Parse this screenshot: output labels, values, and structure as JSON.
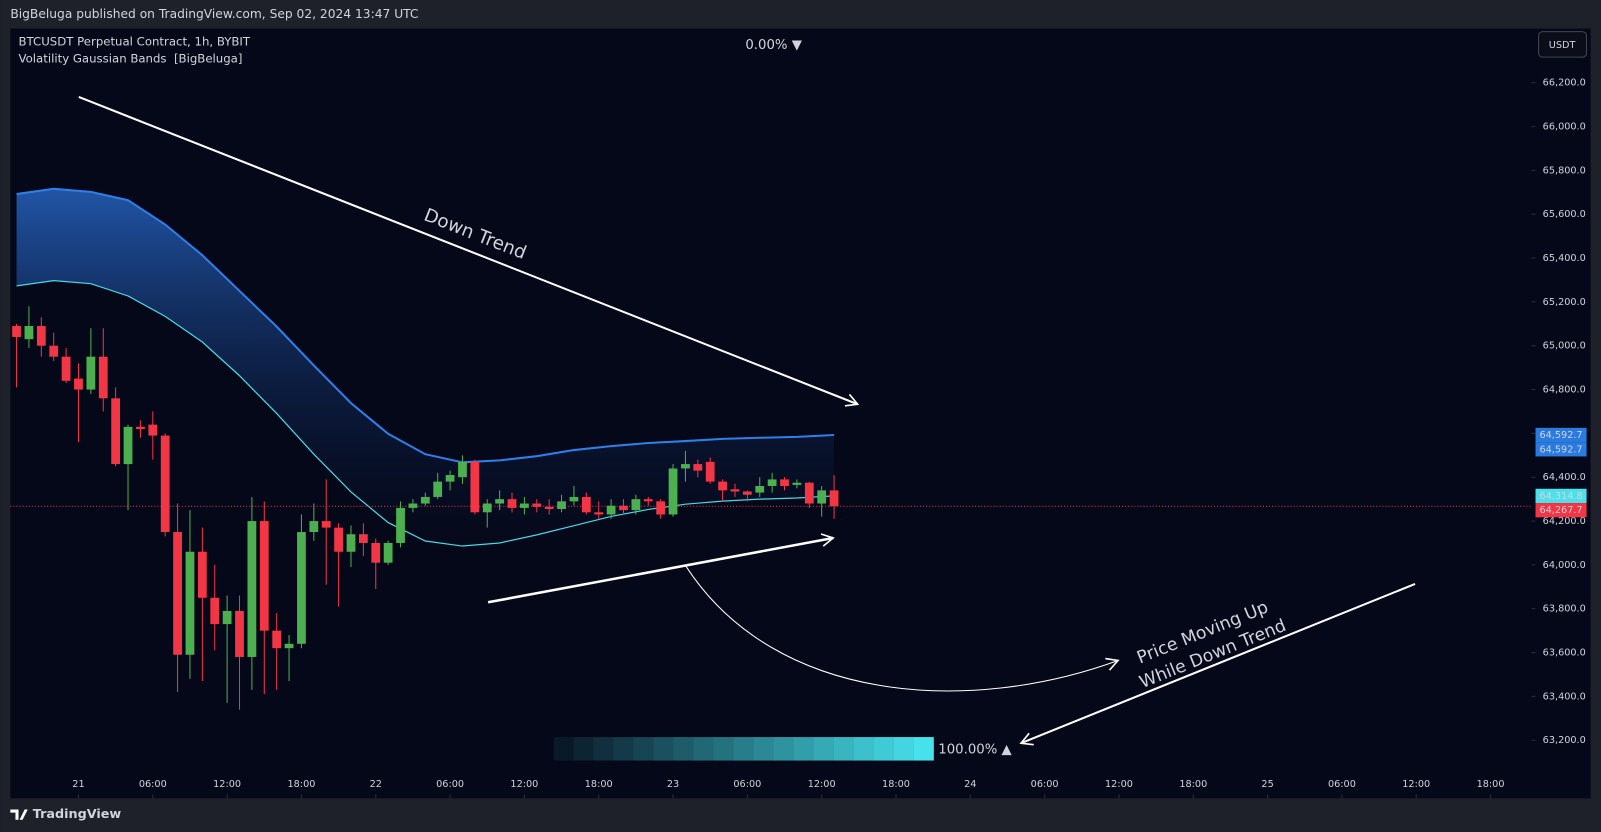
{
  "header": {
    "published": "BigBeluga published on TradingView.com, Sep 02, 2024 13:47 UTC",
    "symbol": "BTCUSDT Perpetual Contract, 1h, BYBIT",
    "indicator": "Volatility Gaussian Bands  [BigBeluga]",
    "currency": "USDT",
    "brand": "TradingView"
  },
  "chart_data": {
    "type": "candlestick",
    "x": [
      -5,
      -4,
      -3,
      -2,
      -1,
      0,
      1,
      2,
      3,
      4,
      5,
      6,
      7,
      8,
      9,
      10,
      11,
      12,
      13,
      14,
      15,
      16,
      17,
      18,
      19,
      20,
      21,
      22,
      23,
      24,
      25,
      26,
      27,
      28,
      29,
      30,
      31,
      32,
      33,
      34,
      35,
      36,
      37,
      38,
      39,
      40,
      41,
      42,
      43,
      44,
      45,
      46,
      47,
      48,
      49,
      50,
      51,
      52,
      53,
      54,
      55,
      56,
      57,
      58,
      59,
      60,
      61
    ],
    "open": [
      65090,
      65030,
      65090,
      65000,
      64950,
      64850,
      64800,
      64950,
      64760,
      64460,
      64630,
      64640,
      64590,
      64150,
      63590,
      64060,
      63850,
      63730,
      63790,
      63580,
      64200,
      63700,
      63620,
      63640,
      64150,
      64200,
      64170,
      64060,
      64140,
      64100,
      64010,
      64100,
      64260,
      64280,
      64310,
      64380,
      64400,
      64470,
      64240,
      64280,
      64300,
      64260,
      64280,
      64265,
      64255,
      64290,
      64310,
      64240,
      64230,
      64270,
      64250,
      64300,
      64290,
      64230,
      64440,
      64460,
      64470,
      64380,
      64345,
      64335,
      64330,
      64360,
      64390,
      64365,
      64375,
      64280,
      64340
    ],
    "high": [
      65100,
      65180,
      65130,
      65060,
      64990,
      64920,
      65080,
      65080,
      64810,
      64640,
      64660,
      64700,
      64600,
      64280,
      64250,
      64170,
      64000,
      63860,
      63860,
      64310,
      64290,
      63780,
      63680,
      64230,
      64280,
      64390,
      64190,
      64180,
      64190,
      64120,
      64110,
      64290,
      64300,
      64330,
      64420,
      64430,
      64500,
      64480,
      64300,
      64340,
      64330,
      64310,
      64300,
      64300,
      64320,
      64360,
      64330,
      64290,
      64300,
      64300,
      64320,
      64310,
      64300,
      64460,
      64520,
      64480,
      64490,
      64390,
      64370,
      64340,
      64400,
      64420,
      64400,
      64390,
      64380,
      64360,
      64410
    ],
    "low": [
      64810,
      64990,
      64950,
      64930,
      64830,
      64560,
      64780,
      64700,
      64450,
      64250,
      64580,
      64480,
      64130,
      63420,
      63480,
      63470,
      63610,
      63370,
      63340,
      63430,
      63410,
      63430,
      63470,
      63620,
      64110,
      63910,
      63810,
      63990,
      64040,
      63890,
      64000,
      64080,
      64240,
      64270,
      64300,
      64340,
      64370,
      64230,
      64170,
      64250,
      64240,
      64230,
      64240,
      64230,
      64240,
      64270,
      64230,
      64210,
      64210,
      64230,
      64230,
      64270,
      64210,
      64220,
      64380,
      64400,
      64370,
      64290,
      64310,
      64290,
      64310,
      64330,
      64340,
      64350,
      64260,
      64220,
      64210
    ],
    "close": [
      65040,
      65090,
      65000,
      64950,
      64840,
      64800,
      64950,
      64760,
      64460,
      64630,
      64620,
      64590,
      64150,
      63590,
      64060,
      63850,
      63730,
      63790,
      63580,
      64200,
      63700,
      63620,
      63640,
      64150,
      64200,
      64170,
      64060,
      64140,
      64100,
      64010,
      64100,
      64260,
      64280,
      64310,
      64380,
      64410,
      64470,
      64240,
      64280,
      64300,
      64260,
      64280,
      64265,
      64255,
      64290,
      64310,
      64240,
      64230,
      64270,
      64250,
      64300,
      64290,
      64230,
      64440,
      64460,
      64430,
      64380,
      64340,
      64335,
      64320,
      64360,
      64390,
      64360,
      64375,
      64280,
      64340,
      64267.7
    ],
    "colors": {
      "up": "#4caf50",
      "down": "#f23645"
    },
    "band": {
      "x": [
        -5,
        -2,
        1,
        4,
        7,
        10,
        13,
        16,
        19,
        22,
        25,
        28,
        31,
        34,
        37,
        40,
        43,
        46,
        49,
        52,
        55,
        58,
        61
      ],
      "upper": [
        65692,
        65716,
        65702,
        65664,
        65553,
        65413,
        65250,
        65087,
        64910,
        64738,
        64598,
        64505,
        64468,
        64477,
        64496,
        64524,
        64542,
        64556,
        64565,
        64575,
        64580,
        64584,
        64592.7
      ],
      "basis": [
        65273,
        65297,
        65283,
        65227,
        65134,
        65017,
        64863,
        64691,
        64505,
        64333,
        64193,
        64109,
        64086,
        64100,
        64137,
        64179,
        64221,
        64253,
        64277,
        64291,
        64300,
        64305,
        64314.8
      ],
      "upper_color": "#2f7fe8",
      "basis_color": "#48d8e6"
    },
    "price_labels": [
      {
        "value": 64592.7,
        "label": "64,592.7",
        "color": "#2a7be0"
      },
      {
        "value": 64592.7,
        "label": "64,592.7",
        "color": "#2a7be0"
      },
      {
        "value": 64314.8,
        "label": "64,314.8",
        "color": "#4ee0ea"
      },
      {
        "value": 64267.7,
        "label": "64,267.7",
        "color": "#f23645"
      }
    ],
    "last_price": 64267.7,
    "xlim": [
      -5.5,
      117.3
    ],
    "xticks": [
      {
        "value": 0,
        "label": "21"
      },
      {
        "value": 6,
        "label": "06:00"
      },
      {
        "value": 12,
        "label": "12:00"
      },
      {
        "value": 18,
        "label": "18:00"
      },
      {
        "value": 24,
        "label": "22"
      },
      {
        "value": 30,
        "label": "06:00"
      },
      {
        "value": 36,
        "label": "12:00"
      },
      {
        "value": 42,
        "label": "18:00"
      },
      {
        "value": 48,
        "label": "23"
      },
      {
        "value": 54,
        "label": "06:00"
      },
      {
        "value": 60,
        "label": "12:00"
      },
      {
        "value": 66,
        "label": "18:00"
      },
      {
        "value": 72,
        "label": "24"
      },
      {
        "value": 78,
        "label": "06:00"
      },
      {
        "value": 84,
        "label": "12:00"
      },
      {
        "value": 90,
        "label": "18:00"
      },
      {
        "value": 96,
        "label": "25"
      },
      {
        "value": 102,
        "label": "06:00"
      },
      {
        "value": 108,
        "label": "12:00"
      },
      {
        "value": 114,
        "label": "18:00"
      }
    ],
    "ylim": [
      62935,
      66447
    ],
    "yticks": [
      {
        "value": 63200,
        "label": "63,200.0"
      },
      {
        "value": 63400,
        "label": "63,400.0"
      },
      {
        "value": 63600,
        "label": "63,600.0"
      },
      {
        "value": 63800,
        "label": "63,800.0"
      },
      {
        "value": 64000,
        "label": "64,000.0"
      },
      {
        "value": 64200,
        "label": "64,200.0"
      },
      {
        "value": 64400,
        "label": "64,400.0"
      },
      {
        "value": 64600,
        "label": "64,600.0"
      },
      {
        "value": 64800,
        "label": "64,800.0"
      },
      {
        "value": 65000,
        "label": "65,000.0"
      },
      {
        "value": 65200,
        "label": "65,200.0"
      },
      {
        "value": 65400,
        "label": "65,400.0"
      },
      {
        "value": 65600,
        "label": "65,600.0"
      },
      {
        "value": 65800,
        "label": "65,800.0"
      },
      {
        "value": 66000,
        "label": "66,000.0"
      },
      {
        "value": 66200,
        "label": "66,200.0"
      }
    ],
    "grid": false,
    "annotations": {
      "down_trend": "Down Trend",
      "note_line1": "Price Moving Up",
      "note_line2": "While Down Trend",
      "top_pct": "0.00% ▼",
      "bottom_pct": "100.00% ▲"
    }
  }
}
